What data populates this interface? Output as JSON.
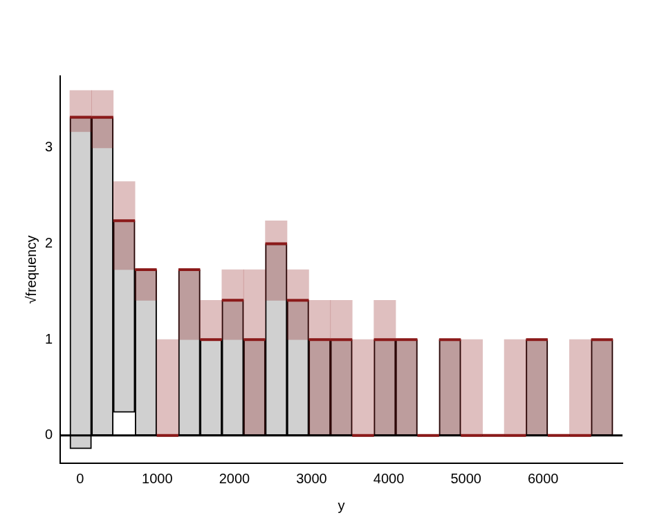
{
  "chart_data": {
    "type": "rootogram",
    "x_label": "y",
    "y_label": "√frequency",
    "bins": [
      -133,
      148.5,
      430,
      711.5,
      993,
      1274.5,
      1556,
      1837.5,
      2119,
      2400.5,
      2682,
      2963.5,
      3245,
      3526.5,
      3808,
      4089.5,
      4371,
      4652.5,
      4934,
      5215.5,
      5497,
      5778.5,
      6060,
      6341.5,
      6623,
      6904.5
    ],
    "expected": [
      3.32,
      3.32,
      2.24,
      1.73,
      0,
      1.73,
      1.0,
      1.41,
      1.0,
      2.0,
      1.41,
      1.0,
      1.0,
      0,
      1.0,
      1.0,
      0,
      1.0,
      0,
      0,
      0,
      1.0,
      0,
      0,
      1.0
    ],
    "observed": [
      3.46,
      3.32,
      2.0,
      1.73,
      0,
      1.73,
      1.0,
      1.41,
      1.0,
      2.0,
      1.41,
      1.0,
      1.0,
      0,
      1.0,
      1.0,
      0,
      1.0,
      0,
      0,
      0,
      1.0,
      0,
      0,
      1.0
    ],
    "interval_low": [
      3.17,
      3.0,
      1.73,
      1.41,
      0,
      1.0,
      1.0,
      1.0,
      0,
      1.41,
      1.0,
      0,
      0,
      0,
      0,
      0,
      0,
      0,
      0,
      0,
      0,
      0,
      0,
      0,
      0
    ],
    "interval_high": [
      3.6,
      3.6,
      2.65,
      1.73,
      1.0,
      1.73,
      1.41,
      1.73,
      1.73,
      2.24,
      1.73,
      1.41,
      1.41,
      1.0,
      1.41,
      1.0,
      0,
      1.0,
      1.0,
      0,
      1.0,
      1.0,
      0,
      1.0,
      1.0
    ],
    "color": "#8b1a1a",
    "xlim": [
      -257,
      7029
    ],
    "xticks": [
      0,
      1000,
      2000,
      3000,
      4000,
      5000,
      6000
    ],
    "ylim": [
      -0.29,
      3.75
    ],
    "yticks": [
      0,
      1,
      2,
      3
    ],
    "grid": false
  }
}
